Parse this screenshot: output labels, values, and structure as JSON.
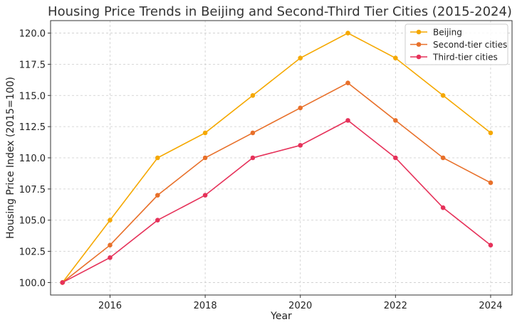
{
  "chart_data": {
    "type": "line",
    "title": "Housing Price Trends in Beijing and Second-Third Tier Cities (2015-2024)",
    "xlabel": "Year",
    "ylabel": "Housing Price Index (2015=100)",
    "x": [
      2015,
      2016,
      2017,
      2018,
      2019,
      2020,
      2021,
      2022,
      2023,
      2024
    ],
    "xticks": [
      2016,
      2018,
      2020,
      2022,
      2024
    ],
    "yticks": [
      100.0,
      102.5,
      105.0,
      107.5,
      110.0,
      112.5,
      115.0,
      117.5,
      120.0
    ],
    "xlim": [
      2014.75,
      2024.45
    ],
    "ylim": [
      99.0,
      121.0
    ],
    "grid": true,
    "legend": "top-right",
    "series": [
      {
        "name": "Beijing",
        "color": "#f5a800",
        "values": [
          100,
          105,
          110,
          112,
          115,
          118,
          120,
          118,
          115,
          112
        ]
      },
      {
        "name": "Second-tier cities",
        "color": "#e8702a",
        "values": [
          100,
          103,
          107,
          110,
          112,
          114,
          116,
          113,
          110,
          108
        ]
      },
      {
        "name": "Third-tier cities",
        "color": "#e6325a",
        "values": [
          100,
          102,
          105,
          107,
          110,
          111,
          113,
          110,
          106,
          103
        ]
      }
    ]
  }
}
